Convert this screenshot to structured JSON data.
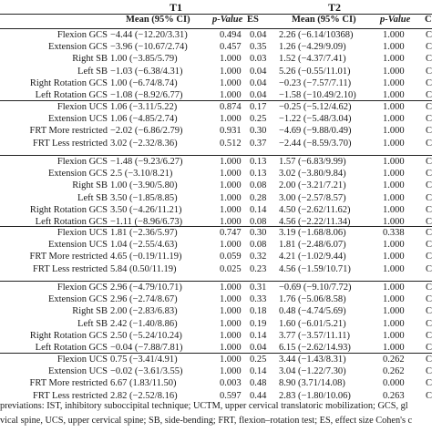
{
  "groups": [
    "T1",
    "T2"
  ],
  "headers": [
    "Mean (95% CI)",
    "p-Value",
    "ES",
    "Mean (95% CI)",
    "p-Value",
    "C"
  ],
  "sections": [
    [
      [
        "Flexion GCS",
        "−4.44 (−12.20/3.31)",
        "0.494",
        "0.04",
        "2.26 (−6.14/10368)",
        "1.000",
        "C"
      ],
      [
        "Extension GCS",
        "−3.96 (−10.67/2.74)",
        "0.457",
        "0.35",
        "1.26 (−4.29/9.09)",
        "1.000",
        "C"
      ],
      [
        "Right SB",
        "1.00 (−3.85/5.79)",
        "1.000",
        "0.03",
        "1.52 (−4.37/7.41)",
        "1.000",
        "C"
      ],
      [
        "Left SB",
        "−1.03 (−6.38/4.31)",
        "1.000",
        "0.04",
        "5.26 (−0.55/11.01)",
        "1.000",
        "C"
      ],
      [
        "Right Rotation GCS",
        "1.00 (−6.74/8.74)",
        "1.000",
        "0.04",
        "−0.23 (−7.57/7.11)",
        "1.000",
        "C"
      ],
      [
        "Left Rotation GCS",
        "−1.08 (−8.92/6.77)",
        "1.000",
        "0.04",
        "−1.58 (−10.49/2.10)",
        "1.000",
        "C"
      ]
    ],
    [
      [
        "Flexion UCS",
        "1.06 (−3.11/5.22)",
        "0.874",
        "0.17",
        "−0.25 (−5.12/4.62)",
        "1.000",
        "C"
      ],
      [
        "Extension UCS",
        "1.06 (−4.85/2.74)",
        "1.000",
        "0.25",
        "−1.22 (−5.48/3.04)",
        "1.000",
        "C"
      ],
      [
        "FRT More restricted",
        "−2.02 (−6.86/2.79)",
        "0.931",
        "0.30",
        "−4.69 (−9.88/0.49)",
        "1.000",
        "C"
      ],
      [
        "FRT Less restricted",
        "3.02 (−2.32/8.36)",
        "0.512",
        "0.37",
        "−2.44 (−8.59/3.70)",
        "1.000",
        "C"
      ]
    ],
    [
      [
        "Flexion GCS",
        "−1.48 (−9.23/6.27)",
        "1.000",
        "0.13",
        "1.57 (−6.83/9.99)",
        "1.000",
        "C"
      ],
      [
        "Extension GCS",
        "2.5 (−3.10/8.21)",
        "1.000",
        "0.13",
        "3.02 (−3.80/9.84)",
        "1.000",
        "C"
      ],
      [
        "Right SB",
        "1.00 (−3.90/5.80)",
        "1.000",
        "0.08",
        "2.00 (−3.21/7.21)",
        "1.000",
        "C"
      ],
      [
        "Left SB",
        "3.50 (−1.85/8.85)",
        "1.000",
        "0.28",
        "3.00 (−2.57/8.57)",
        "1.000",
        "C"
      ],
      [
        "Right Rotation GCS",
        "3.50 (−4.26/11.21)",
        "1.000",
        "0.14",
        "4.50 (−2.62/11.62)",
        "1.000",
        "C"
      ],
      [
        "Left Rotation GCS",
        "−1.11 (−8.96/6.73)",
        "1.000",
        "0.08",
        "4.56 (−2.22/11.34)",
        "1.000",
        "C"
      ]
    ],
    [
      [
        "Flexion UCS",
        "1.81 (−2.36/5.97)",
        "0.747",
        "0.30",
        "3.19 (−1.68/8.06)",
        "0.338",
        "C"
      ],
      [
        "Extension UCS",
        "1.04 (−2.55/4.63)",
        "1.000",
        "0.08",
        "1.81 (−2.48/6.07)",
        "1.000",
        "C"
      ],
      [
        "FRT More restricted",
        "4.65 (−0.19/11.19)",
        "0.059",
        "0.32",
        "4.21 (−1.02/9.44)",
        "1.000",
        "C"
      ],
      [
        "FRT Less restricted",
        "5.84 (0.50/11.19)",
        "0.025",
        "0.23",
        "4.56 (−1.59/10.71)",
        "1.000",
        "C"
      ]
    ],
    [
      [
        "Flexion GCS",
        "2.96 (−4.79/10.71)",
        "1.000",
        "0.31",
        "−0.69 (−9.10/7.72)",
        "1.000",
        "C"
      ],
      [
        "Extension GCS",
        "2.96 (−2.74/8.67)",
        "1.000",
        "0.33",
        "1.76 (−5.06/8.58)",
        "1.000",
        "C"
      ],
      [
        "Right SB",
        "2.00 (−2.83/6.83)",
        "1.000",
        "0.18",
        "0.48 (−4.74/5.69)",
        "1.000",
        "C"
      ],
      [
        "Left SB",
        "2.42 (−1.40/8.86)",
        "1.000",
        "0.19",
        "1.60 (−6.01/5.21)",
        "1.000",
        "C"
      ],
      [
        "Right Rotation GCS",
        "2.50 (−5.24/10.24)",
        "1.000",
        "0.14",
        "3.77 (−3.57/11.11)",
        "1.000",
        "C"
      ],
      [
        "Left Rotation GCS",
        "−0.04 (−7.88/7.81)",
        "1.000",
        "0.04",
        "6.15 (−2.62/14.93)",
        "1.000",
        "C"
      ]
    ],
    [
      [
        "Flexion UCS",
        "0.75 (−3.41/4.91)",
        "1.000",
        "0.25",
        "3.44 (−1.43/8.31)",
        "0.262",
        "C"
      ],
      [
        "Extension UCS",
        "−0.02 (−3.61/3.55)",
        "1.000",
        "0.14",
        "3.04 (−1.22/7.30)",
        "0.262",
        "C"
      ],
      [
        "FRT More restricted",
        "6.67 (1.83/11.50)",
        "0.003",
        "0.48",
        "8.90 (3.71/14.08)",
        "0.000",
        "C"
      ],
      [
        "FRT Less restricted",
        "2.82 (−2.52/8.16)",
        "0.597",
        "0.44",
        "2.83 (−1.80/10.06)",
        "0.263",
        "C"
      ]
    ]
  ],
  "footnote": {
    "line1": "previations: IST, inhibitory suboccipital technique; UCTM, upper cervical translatoric mobilization; GCS, gl",
    "line2": "vical spine, UCS, upper cervical spine; SB, side-bending; FRT, flexion–rotation test; ES, effect size Cohen's c"
  }
}
